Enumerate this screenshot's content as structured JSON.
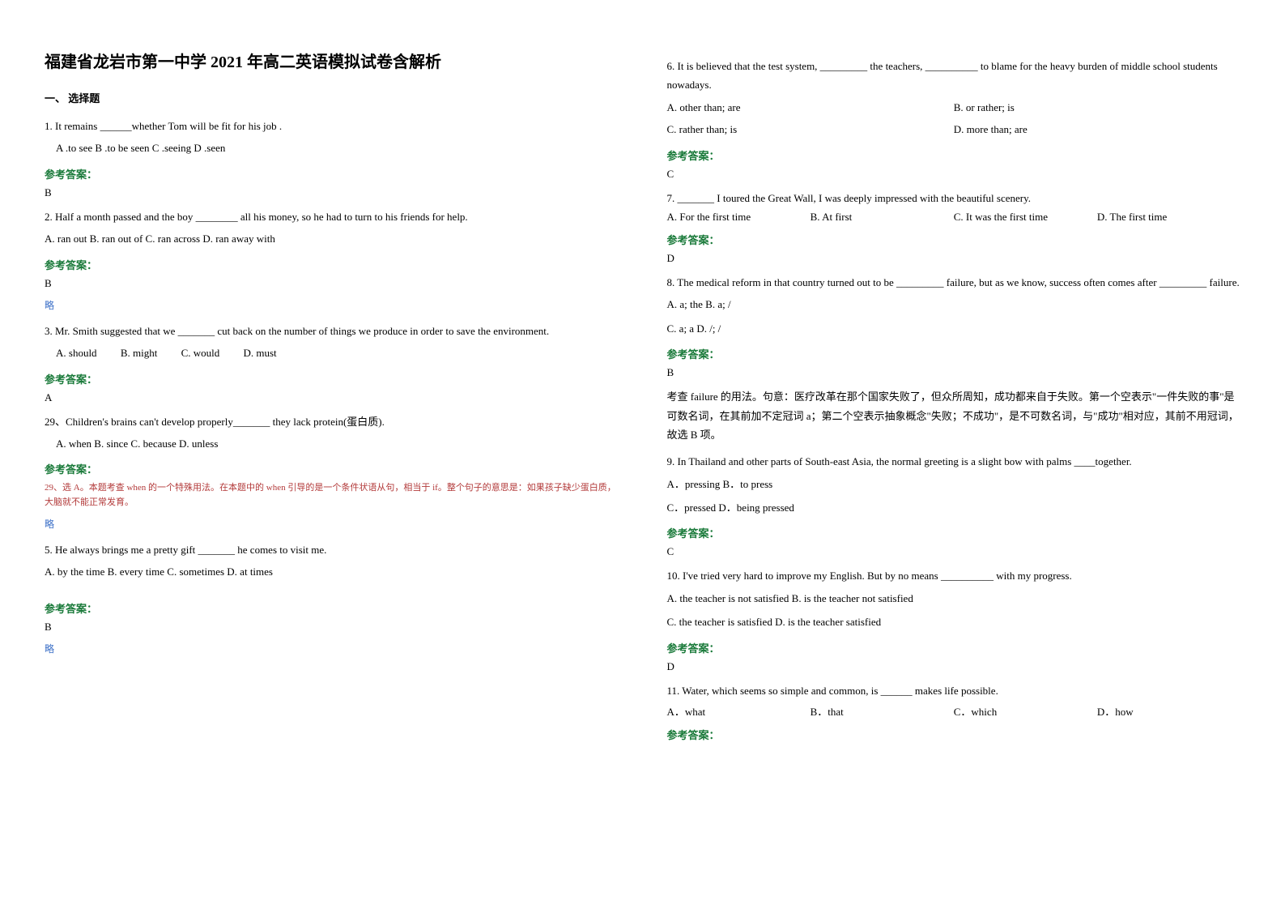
{
  "title": "福建省龙岩市第一中学 2021 年高二英语模拟试卷含解析",
  "section1": "一、 选择题",
  "answer_label": "参考答案：",
  "skip_label": "略",
  "q1": {
    "stem": "1.  It remains ______whether Tom will be fit for his job .",
    "opts": "A .to see     B .to be seen    C .seeing    D .seen",
    "ans": "B"
  },
  "q2": {
    "stem": "2. Half a month passed and the boy ________ all his money, so he had to turn to his friends for help.",
    "opts": "A. ran out   B.  ran out of   C.  ran across   D.  ran away with",
    "ans": "B"
  },
  "q3": {
    "stem": "3. Mr. Smith suggested that we _______ cut back on the number of things we produce in order to save the environment.",
    "optA": "A. should",
    "optB": "B. might",
    "optC": "C. would",
    "optD": "D. must",
    "ans": "A"
  },
  "q4": {
    "stem": "29、Children's brains can't develop properly_______ they lack protein(蛋白质).",
    "opts": "A. when  B. since       C. because         D. unless",
    "note": "29、选 A。本题考查 when 的一个特殊用法。在本题中的 when 引导的是一个条件状语从句，相当于 if。整个句子的意思是：如果孩子缺少蛋白质，大脑就不能正常发育。"
  },
  "q5": {
    "stem": "5. He always brings me a pretty gift _______ he comes to visit me.",
    "opts": "A. by the time    B. every time     C. sometimes     D.  at times",
    "ans": "B"
  },
  "q6": {
    "stem": "6. It is believed that the test system, _________ the teachers, __________ to blame for the heavy burden of middle school students nowadays.",
    "optA": "A. other than; are",
    "optB": "B. or rather; is",
    "optC": "C. rather than; is",
    "optD": "D. more than; are",
    "ans": "C"
  },
  "q7": {
    "stem": "7. _______ I toured the Great Wall, I was deeply impressed with the beautiful scenery.",
    "optA": "A. For the first time",
    "optB": "B. At first",
    "optC": "C. It was the first time",
    "optD": "D. The first time",
    "ans": "D"
  },
  "q8": {
    "stem1": "8. The medical reform in that country turned out to be _________ failure, but as we know, success often comes after _________ failure.",
    "opts1": "A. a; the         B. a; /",
    "opts2": "C. a; a   D. /; /",
    "ans": "B",
    "explain": "考查 failure 的用法。句意：医疗改革在那个国家失败了，但众所周知，成功都来自于失败。第一个空表示\"一件失败的事\"是可数名词，在其前加不定冠词 a；第二个空表示抽象概念\"失败；不成功\"，是不可数名词，与\"成功\"相对应，其前不用冠词，故选 B 项。"
  },
  "q9": {
    "stem": "9. In Thailand and other parts of South-east Asia, the normal greeting is a slight bow with palms ____together.",
    "opts1": "A．pressing     B．to press",
    "opts2": "C．pressed     D．being pressed",
    "ans": "C"
  },
  "q10": {
    "stem": "10. I've tried very hard to improve my English. But by no means __________ with my progress.",
    "opts1": "A. the teacher is not satisfied      B. is the teacher not satisfied",
    "opts2": "C. the teacher is satisfied       D. is the teacher satisfied",
    "ans": "D"
  },
  "q11": {
    "stem": "11. Water, which seems so simple and common, is ______ makes life possible.",
    "optA": "A．what",
    "optB": "B．that",
    "optC": "C．which",
    "optD": "D．how"
  }
}
